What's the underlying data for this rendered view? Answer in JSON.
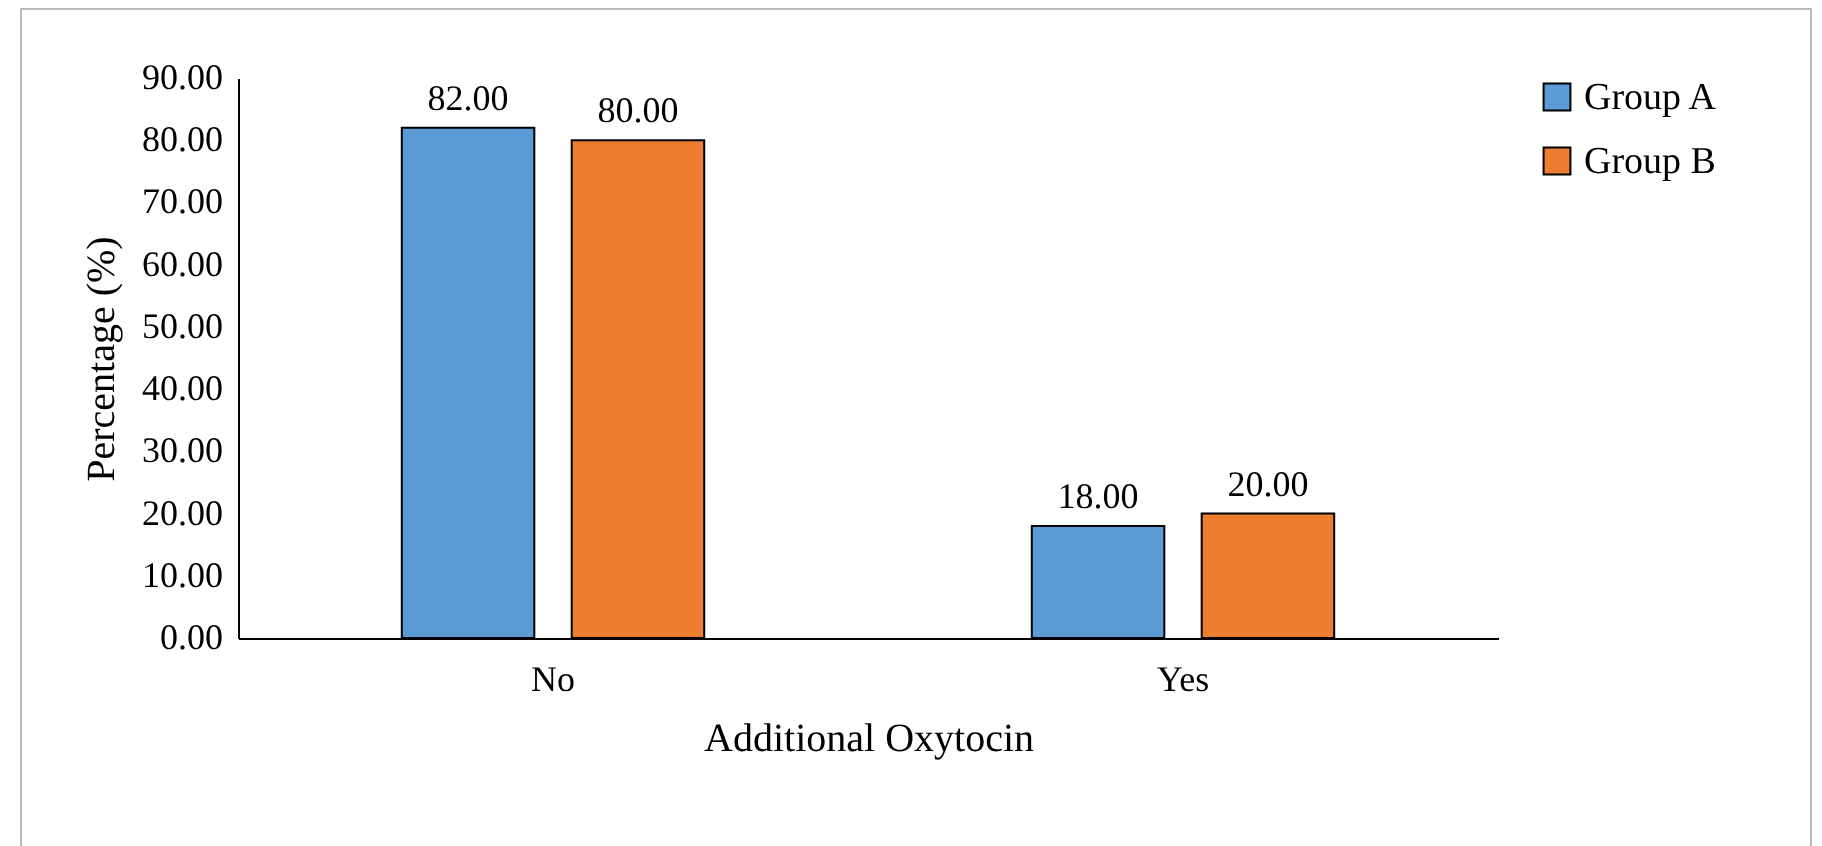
{
  "chart_data": {
    "type": "bar",
    "xlabel": "Additional Oxytocin",
    "ylabel": "Percentage (%)",
    "categories": [
      "No",
      "Yes"
    ],
    "series": [
      {
        "name": "Group A",
        "color": "#5b9bd5",
        "values": [
          82,
          18
        ],
        "value_labels": [
          "82.00",
          "18.00"
        ]
      },
      {
        "name": "Group B",
        "color": "#ed7d31",
        "values": [
          80,
          20
        ],
        "value_labels": [
          "80.00",
          "20.00"
        ]
      }
    ],
    "ylim": [
      0,
      90
    ],
    "yticks": [
      {
        "value": 0,
        "label": "0.00"
      },
      {
        "value": 10,
        "label": "10.00"
      },
      {
        "value": 20,
        "label": "20.00"
      },
      {
        "value": 30,
        "label": "30.00"
      },
      {
        "value": 40,
        "label": "40.00"
      },
      {
        "value": 50,
        "label": "50.00"
      },
      {
        "value": 60,
        "label": "60.00"
      },
      {
        "value": 70,
        "label": "70.00"
      },
      {
        "value": 80,
        "label": "80.00"
      },
      {
        "value": 90,
        "label": "90.00"
      }
    ],
    "grid": false,
    "legend": "right"
  }
}
